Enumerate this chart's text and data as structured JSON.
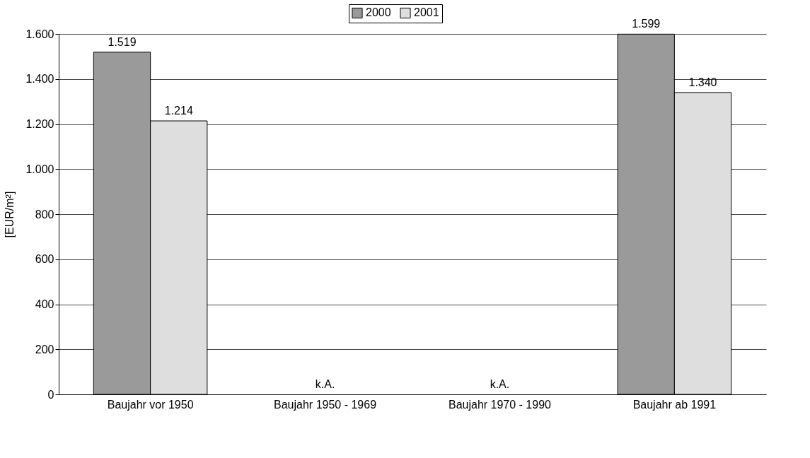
{
  "chart_data": {
    "type": "bar",
    "ylabel": "[EUR/m²]",
    "categories": [
      "Baujahr vor 1950",
      "Baujahr 1950 - 1969",
      "Baujahr 1970 - 1990",
      "Baujahr ab 1991"
    ],
    "series": [
      {
        "name": "2000",
        "color": "#9a9a9a",
        "values": [
          1519,
          null,
          null,
          1599
        ],
        "value_labels": [
          "1.519",
          null,
          null,
          "1.599"
        ]
      },
      {
        "name": "2001",
        "color": "#dedede",
        "values": [
          1214,
          null,
          null,
          1340
        ],
        "value_labels": [
          "1.214",
          null,
          null,
          "1.340"
        ]
      }
    ],
    "ylim": [
      0,
      1600
    ],
    "yticks": [
      0,
      200,
      400,
      600,
      800,
      {
        "value": 1000,
        "label": "1.000"
      },
      {
        "value": 1200,
        "label": "1.200"
      },
      {
        "value": 1400,
        "label": "1.400"
      },
      {
        "value": 1600,
        "label": "1.600"
      }
    ],
    "grid": "y",
    "legend": "top",
    "annotations": [
      "k.A.",
      "k.A."
    ]
  }
}
